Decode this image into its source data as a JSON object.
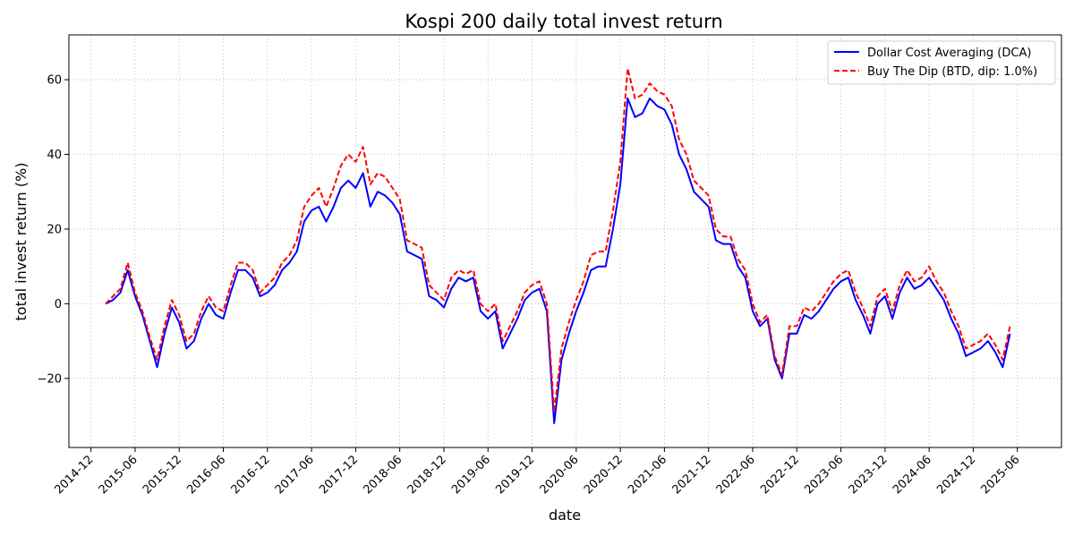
{
  "chart_data": {
    "type": "line",
    "title": "Kospi 200 daily total invest return",
    "xlabel": "date",
    "ylabel": "total invest return (%)",
    "grid": true,
    "legend_position": "top-right",
    "x_ticks": [
      "2014-12",
      "2015-06",
      "2015-12",
      "2016-06",
      "2016-12",
      "2017-06",
      "2017-12",
      "2018-06",
      "2018-12",
      "2019-06",
      "2019-12",
      "2020-06",
      "2020-12",
      "2021-06",
      "2021-12",
      "2022-06",
      "2022-12",
      "2023-06",
      "2023-12",
      "2024-06",
      "2024-12",
      "2025-06"
    ],
    "y_ticks": [
      -20,
      0,
      20,
      40,
      60
    ],
    "y_tick_labels": [
      "−20",
      "0",
      "20",
      "40",
      "60"
    ],
    "ylim": [
      -38.5,
      72
    ],
    "xlim": [
      "2014-09",
      "2025-12"
    ],
    "series": [
      {
        "name": "Dollar Cost Averaging (DCA)",
        "color": "#0000ff",
        "style": "solid",
        "points": [
          [
            "2015-02",
            0
          ],
          [
            "2015-03",
            1
          ],
          [
            "2015-04",
            3
          ],
          [
            "2015-05",
            9
          ],
          [
            "2015-06",
            2
          ],
          [
            "2015-07",
            -3
          ],
          [
            "2015-08",
            -10
          ],
          [
            "2015-09",
            -17
          ],
          [
            "2015-10",
            -8
          ],
          [
            "2015-11",
            -1
          ],
          [
            "2015-12",
            -5
          ],
          [
            "2016-01",
            -12
          ],
          [
            "2016-02",
            -10
          ],
          [
            "2016-03",
            -4
          ],
          [
            "2016-04",
            0
          ],
          [
            "2016-05",
            -3
          ],
          [
            "2016-06",
            -4
          ],
          [
            "2016-07",
            3
          ],
          [
            "2016-08",
            9
          ],
          [
            "2016-09",
            9
          ],
          [
            "2016-10",
            7
          ],
          [
            "2016-11",
            2
          ],
          [
            "2016-12",
            3
          ],
          [
            "2017-01",
            5
          ],
          [
            "2017-02",
            9
          ],
          [
            "2017-03",
            11
          ],
          [
            "2017-04",
            14
          ],
          [
            "2017-05",
            22
          ],
          [
            "2017-06",
            25
          ],
          [
            "2017-07",
            26
          ],
          [
            "2017-08",
            22
          ],
          [
            "2017-09",
            26
          ],
          [
            "2017-10",
            31
          ],
          [
            "2017-11",
            33
          ],
          [
            "2017-12",
            31
          ],
          [
            "2018-01",
            35
          ],
          [
            "2018-02",
            26
          ],
          [
            "2018-03",
            30
          ],
          [
            "2018-04",
            29
          ],
          [
            "2018-05",
            27
          ],
          [
            "2018-06",
            24
          ],
          [
            "2018-07",
            14
          ],
          [
            "2018-08",
            13
          ],
          [
            "2018-09",
            12
          ],
          [
            "2018-10",
            2
          ],
          [
            "2018-11",
            1
          ],
          [
            "2018-12",
            -1
          ],
          [
            "2019-01",
            4
          ],
          [
            "2019-02",
            7
          ],
          [
            "2019-03",
            6
          ],
          [
            "2019-04",
            7
          ],
          [
            "2019-05",
            -2
          ],
          [
            "2019-06",
            -4
          ],
          [
            "2019-07",
            -2
          ],
          [
            "2019-08",
            -12
          ],
          [
            "2019-09",
            -8
          ],
          [
            "2019-10",
            -4
          ],
          [
            "2019-11",
            1
          ],
          [
            "2019-12",
            3
          ],
          [
            "2020-01",
            4
          ],
          [
            "2020-02",
            -2
          ],
          [
            "2020-03",
            -32
          ],
          [
            "2020-04",
            -15
          ],
          [
            "2020-05",
            -8
          ],
          [
            "2020-06",
            -2
          ],
          [
            "2020-07",
            3
          ],
          [
            "2020-08",
            9
          ],
          [
            "2020-09",
            10
          ],
          [
            "2020-10",
            10
          ],
          [
            "2020-11",
            20
          ],
          [
            "2020-12",
            32
          ],
          [
            "2021-01",
            55
          ],
          [
            "2021-02",
            50
          ],
          [
            "2021-03",
            51
          ],
          [
            "2021-04",
            55
          ],
          [
            "2021-05",
            53
          ],
          [
            "2021-06",
            52
          ],
          [
            "2021-07",
            48
          ],
          [
            "2021-08",
            40
          ],
          [
            "2021-09",
            36
          ],
          [
            "2021-10",
            30
          ],
          [
            "2021-11",
            28
          ],
          [
            "2021-12",
            26
          ],
          [
            "2022-01",
            17
          ],
          [
            "2022-02",
            16
          ],
          [
            "2022-03",
            16
          ],
          [
            "2022-04",
            10
          ],
          [
            "2022-05",
            7
          ],
          [
            "2022-06",
            -2
          ],
          [
            "2022-07",
            -6
          ],
          [
            "2022-08",
            -4
          ],
          [
            "2022-09",
            -15
          ],
          [
            "2022-10",
            -20
          ],
          [
            "2022-11",
            -8
          ],
          [
            "2022-12",
            -8
          ],
          [
            "2023-01",
            -3
          ],
          [
            "2023-02",
            -4
          ],
          [
            "2023-03",
            -2
          ],
          [
            "2023-04",
            1
          ],
          [
            "2023-05",
            4
          ],
          [
            "2023-06",
            6
          ],
          [
            "2023-07",
            7
          ],
          [
            "2023-08",
            1
          ],
          [
            "2023-09",
            -3
          ],
          [
            "2023-10",
            -8
          ],
          [
            "2023-11",
            0
          ],
          [
            "2023-12",
            2
          ],
          [
            "2024-01",
            -4
          ],
          [
            "2024-02",
            3
          ],
          [
            "2024-03",
            7
          ],
          [
            "2024-04",
            4
          ],
          [
            "2024-05",
            5
          ],
          [
            "2024-06",
            7
          ],
          [
            "2024-07",
            4
          ],
          [
            "2024-08",
            1
          ],
          [
            "2024-09",
            -4
          ],
          [
            "2024-10",
            -8
          ],
          [
            "2024-11",
            -14
          ],
          [
            "2024-12",
            -13
          ],
          [
            "2025-01",
            -12
          ],
          [
            "2025-02",
            -10
          ],
          [
            "2025-03",
            -13
          ],
          [
            "2025-04",
            -17
          ],
          [
            "2025-05",
            -8
          ]
        ]
      },
      {
        "name": "Buy The Dip (BTD, dip: 1.0%)",
        "color": "#ff0000",
        "style": "dashed",
        "points": [
          [
            "2015-02",
            0
          ],
          [
            "2015-03",
            2
          ],
          [
            "2015-04",
            4
          ],
          [
            "2015-05",
            11
          ],
          [
            "2015-06",
            3
          ],
          [
            "2015-07",
            -2
          ],
          [
            "2015-08",
            -9
          ],
          [
            "2015-09",
            -15
          ],
          [
            "2015-10",
            -6
          ],
          [
            "2015-11",
            1
          ],
          [
            "2015-12",
            -3
          ],
          [
            "2016-01",
            -10
          ],
          [
            "2016-02",
            -8
          ],
          [
            "2016-03",
            -2
          ],
          [
            "2016-04",
            2
          ],
          [
            "2016-05",
            -1
          ],
          [
            "2016-06",
            -2
          ],
          [
            "2016-07",
            5
          ],
          [
            "2016-08",
            11
          ],
          [
            "2016-09",
            11
          ],
          [
            "2016-10",
            9
          ],
          [
            "2016-11",
            3
          ],
          [
            "2016-12",
            5
          ],
          [
            "2017-01",
            7
          ],
          [
            "2017-02",
            11
          ],
          [
            "2017-03",
            13
          ],
          [
            "2017-04",
            17
          ],
          [
            "2017-05",
            26
          ],
          [
            "2017-06",
            29
          ],
          [
            "2017-07",
            31
          ],
          [
            "2017-08",
            26
          ],
          [
            "2017-09",
            31
          ],
          [
            "2017-10",
            37
          ],
          [
            "2017-11",
            40
          ],
          [
            "2017-12",
            38
          ],
          [
            "2018-01",
            42
          ],
          [
            "2018-02",
            32
          ],
          [
            "2018-03",
            35
          ],
          [
            "2018-04",
            34
          ],
          [
            "2018-05",
            31
          ],
          [
            "2018-06",
            28
          ],
          [
            "2018-07",
            17
          ],
          [
            "2018-08",
            16
          ],
          [
            "2018-09",
            15
          ],
          [
            "2018-10",
            5
          ],
          [
            "2018-11",
            3
          ],
          [
            "2018-12",
            1
          ],
          [
            "2019-01",
            7
          ],
          [
            "2019-02",
            9
          ],
          [
            "2019-03",
            8
          ],
          [
            "2019-04",
            9
          ],
          [
            "2019-05",
            0
          ],
          [
            "2019-06",
            -2
          ],
          [
            "2019-07",
            0
          ],
          [
            "2019-08",
            -10
          ],
          [
            "2019-09",
            -6
          ],
          [
            "2019-10",
            -2
          ],
          [
            "2019-11",
            3
          ],
          [
            "2019-12",
            5
          ],
          [
            "2020-01",
            6
          ],
          [
            "2020-02",
            0
          ],
          [
            "2020-03",
            -29
          ],
          [
            "2020-04",
            -12
          ],
          [
            "2020-05",
            -5
          ],
          [
            "2020-06",
            1
          ],
          [
            "2020-07",
            6
          ],
          [
            "2020-08",
            13
          ],
          [
            "2020-09",
            14
          ],
          [
            "2020-10",
            14
          ],
          [
            "2020-11",
            25
          ],
          [
            "2020-12",
            38
          ],
          [
            "2021-01",
            63
          ],
          [
            "2021-02",
            55
          ],
          [
            "2021-03",
            56
          ],
          [
            "2021-04",
            59
          ],
          [
            "2021-05",
            57
          ],
          [
            "2021-06",
            56
          ],
          [
            "2021-07",
            53
          ],
          [
            "2021-08",
            44
          ],
          [
            "2021-09",
            40
          ],
          [
            "2021-10",
            33
          ],
          [
            "2021-11",
            31
          ],
          [
            "2021-12",
            29
          ],
          [
            "2022-01",
            20
          ],
          [
            "2022-02",
            18
          ],
          [
            "2022-03",
            18
          ],
          [
            "2022-04",
            12
          ],
          [
            "2022-05",
            9
          ],
          [
            "2022-06",
            0
          ],
          [
            "2022-07",
            -5
          ],
          [
            "2022-08",
            -3
          ],
          [
            "2022-09",
            -14
          ],
          [
            "2022-10",
            -19
          ],
          [
            "2022-11",
            -6
          ],
          [
            "2022-12",
            -6
          ],
          [
            "2023-01",
            -1
          ],
          [
            "2023-02",
            -2
          ],
          [
            "2023-03",
            0
          ],
          [
            "2023-04",
            3
          ],
          [
            "2023-05",
            6
          ],
          [
            "2023-06",
            8
          ],
          [
            "2023-07",
            9
          ],
          [
            "2023-08",
            3
          ],
          [
            "2023-09",
            -1
          ],
          [
            "2023-10",
            -6
          ],
          [
            "2023-11",
            2
          ],
          [
            "2023-12",
            4
          ],
          [
            "2024-01",
            -2
          ],
          [
            "2024-02",
            5
          ],
          [
            "2024-03",
            9
          ],
          [
            "2024-04",
            6
          ],
          [
            "2024-05",
            7
          ],
          [
            "2024-06",
            10
          ],
          [
            "2024-07",
            6
          ],
          [
            "2024-08",
            3
          ],
          [
            "2024-09",
            -2
          ],
          [
            "2024-10",
            -6
          ],
          [
            "2024-11",
            -12
          ],
          [
            "2024-12",
            -11
          ],
          [
            "2025-01",
            -10
          ],
          [
            "2025-02",
            -8
          ],
          [
            "2025-03",
            -11
          ],
          [
            "2025-04",
            -15
          ],
          [
            "2025-05",
            -6
          ]
        ]
      }
    ]
  }
}
